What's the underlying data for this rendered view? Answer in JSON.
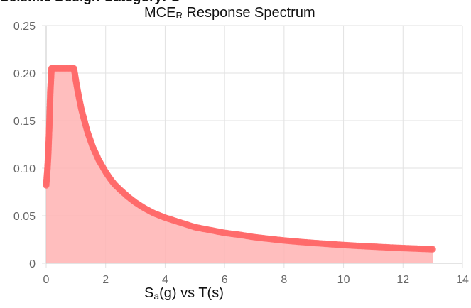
{
  "page": {
    "heading": "Seismic Design Category: C"
  },
  "chart_data": {
    "type": "area",
    "title_main": "MCE",
    "title_sub": "R",
    "title_rest": " Response Spectrum",
    "xlabel_main": "S",
    "xlabel_sub": "a",
    "xlabel_rest": "(g) vs T(s)",
    "xlim": [
      0,
      14
    ],
    "ylim": [
      0,
      0.25
    ],
    "x_ticks": [
      0,
      2,
      4,
      6,
      8,
      10,
      12,
      14
    ],
    "x_tick_labels": [
      "0",
      "2",
      "4",
      "6",
      "8",
      "10",
      "12",
      "14"
    ],
    "y_ticks": [
      0,
      0.05,
      0.1,
      0.15,
      0.2,
      0.25
    ],
    "y_tick_labels": [
      "0",
      "0.05",
      "0.10",
      "0.15",
      "0.20",
      "0.25"
    ],
    "grid": true,
    "series": [
      {
        "color": "#ff6b6b",
        "fill": "#ffb3b3",
        "points": [
          [
            0.0,
            0.082
          ],
          [
            0.04,
            0.098
          ],
          [
            0.07,
            0.115
          ],
          [
            0.11,
            0.148
          ],
          [
            0.14,
            0.181
          ],
          [
            0.18,
            0.205
          ],
          [
            0.25,
            0.205
          ],
          [
            0.35,
            0.205
          ],
          [
            0.45,
            0.205
          ],
          [
            0.55,
            0.205
          ],
          [
            0.65,
            0.205
          ],
          [
            0.75,
            0.205
          ],
          [
            0.85,
            0.205
          ],
          [
            0.93,
            0.205
          ],
          [
            0.96,
            0.2
          ],
          [
            1.0,
            0.192
          ],
          [
            1.05,
            0.183
          ],
          [
            1.1,
            0.175
          ],
          [
            1.15,
            0.167
          ],
          [
            1.2,
            0.16
          ],
          [
            1.26,
            0.153
          ],
          [
            1.32,
            0.146
          ],
          [
            1.4,
            0.137
          ],
          [
            1.48,
            0.13
          ],
          [
            1.57,
            0.122
          ],
          [
            1.66,
            0.116
          ],
          [
            1.76,
            0.109
          ],
          [
            1.87,
            0.103
          ],
          [
            2.0,
            0.096
          ],
          [
            2.15,
            0.089
          ],
          [
            2.3,
            0.083
          ],
          [
            2.5,
            0.077
          ],
          [
            2.75,
            0.07
          ],
          [
            3.0,
            0.064
          ],
          [
            3.3,
            0.058
          ],
          [
            3.6,
            0.053
          ],
          [
            4.0,
            0.048
          ],
          [
            4.5,
            0.043
          ],
          [
            5.0,
            0.038
          ],
          [
            5.5,
            0.035
          ],
          [
            6.0,
            0.032
          ],
          [
            6.5,
            0.03
          ],
          [
            7.0,
            0.0275
          ],
          [
            7.5,
            0.0257
          ],
          [
            8.0,
            0.024
          ],
          [
            8.5,
            0.0226
          ],
          [
            9.0,
            0.0214
          ],
          [
            9.5,
            0.0203
          ],
          [
            10.0,
            0.0192
          ],
          [
            10.5,
            0.0183
          ],
          [
            11.0,
            0.0175
          ],
          [
            11.5,
            0.0167
          ],
          [
            12.0,
            0.016
          ],
          [
            12.5,
            0.0154
          ],
          [
            13.0,
            0.0148
          ]
        ]
      }
    ]
  }
}
